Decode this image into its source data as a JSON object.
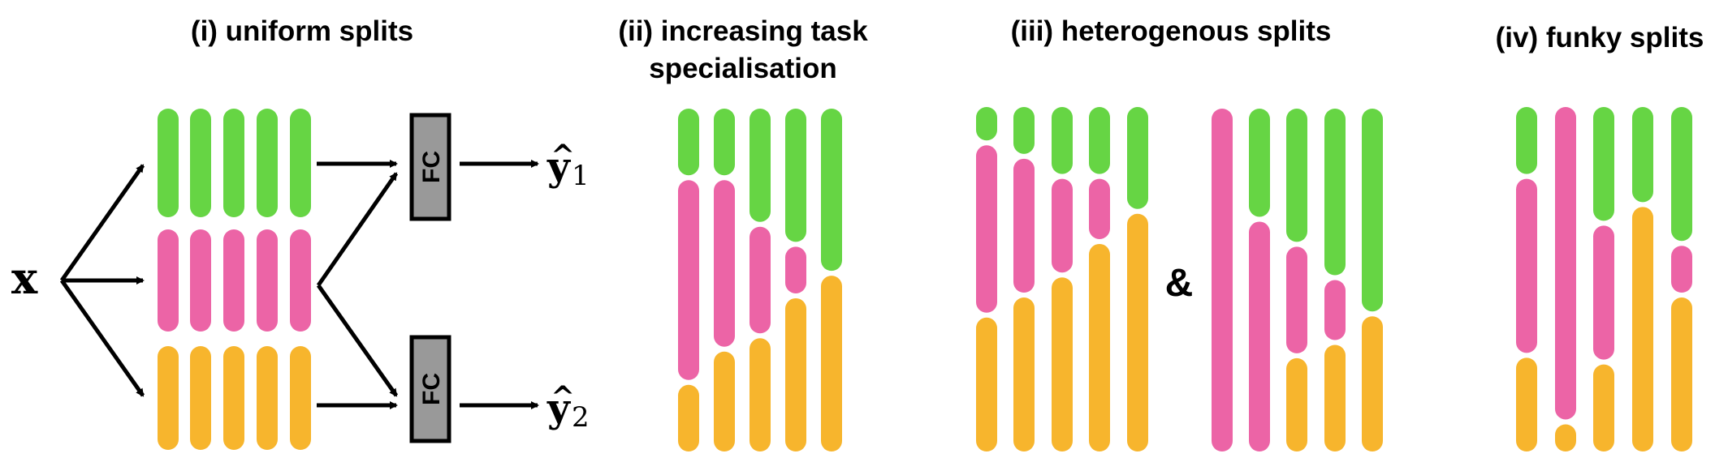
{
  "colors": {
    "green": "#66d544",
    "pink": "#ec64a6",
    "orange": "#f7b52d",
    "fc_fill": "#999999",
    "ink": "#000000"
  },
  "panels": {
    "uniform": {
      "title": "(i) uniform splits"
    },
    "increasing": {
      "title_line1": "(ii) increasing task",
      "title_line2": "specialisation"
    },
    "heterogenous": {
      "title": "(iii) heterogenous splits",
      "joiner": "&"
    },
    "funky": {
      "title": "(iv) funky splits"
    }
  },
  "labels": {
    "input": "x",
    "fc": "FC",
    "output1": {
      "base": "y",
      "hat": "^",
      "sub": "1"
    },
    "output2": {
      "base": "y",
      "hat": "^",
      "sub": "2"
    }
  },
  "uniform_units": {
    "columns": 5,
    "tasks": [
      "green",
      "pink",
      "orange"
    ]
  },
  "split_layouts": {
    "increasing": [
      [
        [
          "green",
          1
        ],
        [
          "pink",
          3
        ],
        [
          "orange",
          1
        ]
      ],
      [
        [
          "green",
          1
        ],
        [
          "pink",
          2.5
        ],
        [
          "orange",
          1.5
        ]
      ],
      [
        [
          "green",
          1.7
        ],
        [
          "pink",
          1.6
        ],
        [
          "orange",
          1.7
        ]
      ],
      [
        [
          "green",
          2
        ],
        [
          "pink",
          0.7
        ],
        [
          "orange",
          2.3
        ]
      ],
      [
        [
          "green",
          2.4
        ],
        [
          "orange",
          2.6
        ]
      ]
    ],
    "heterogenous_a": [
      [
        [
          "green",
          0.5
        ],
        [
          "pink",
          2.5
        ],
        [
          "orange",
          2
        ]
      ],
      [
        [
          "green",
          0.7
        ],
        [
          "pink",
          2
        ],
        [
          "orange",
          2.3
        ]
      ],
      [
        [
          "green",
          1
        ],
        [
          "pink",
          1.4
        ],
        [
          "orange",
          2.6
        ]
      ],
      [
        [
          "green",
          1
        ],
        [
          "pink",
          0.9
        ],
        [
          "orange",
          3.1
        ]
      ],
      [
        [
          "green",
          1.5
        ],
        [
          "orange",
          3.5
        ]
      ]
    ],
    "heterogenous_b": [
      [
        [
          "pink",
          5
        ]
      ],
      [
        [
          "green",
          1.6
        ],
        [
          "pink",
          3.4
        ]
      ],
      [
        [
          "green",
          2
        ],
        [
          "pink",
          1.6
        ],
        [
          "orange",
          1.4
        ]
      ],
      [
        [
          "green",
          2.5
        ],
        [
          "pink",
          0.9
        ],
        [
          "orange",
          1.6
        ]
      ],
      [
        [
          "green",
          3
        ],
        [
          "orange",
          2
        ]
      ]
    ],
    "funky": [
      [
        [
          "green",
          1
        ],
        [
          "pink",
          2.6
        ],
        [
          "orange",
          1.4
        ]
      ],
      [
        [
          "pink",
          4.6
        ],
        [
          "orange",
          0.4
        ]
      ],
      [
        [
          "green",
          1.7
        ],
        [
          "pink",
          2
        ],
        [
          "orange",
          1.3
        ]
      ],
      [
        [
          "green",
          1.4
        ],
        [
          "orange",
          3.6
        ]
      ],
      [
        [
          "green",
          2
        ],
        [
          "pink",
          0.7
        ],
        [
          "orange",
          2.3
        ]
      ]
    ]
  }
}
